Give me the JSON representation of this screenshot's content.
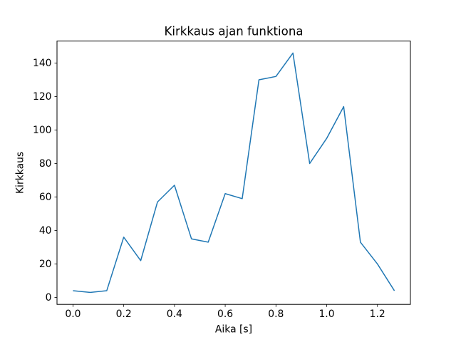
{
  "chart_data": {
    "type": "line",
    "title": "Kirkkaus ajan funktiona",
    "xlabel": "Aika [s]",
    "ylabel": "Kirkkaus",
    "x": [
      0.0,
      0.067,
      0.133,
      0.2,
      0.267,
      0.333,
      0.4,
      0.467,
      0.533,
      0.6,
      0.667,
      0.733,
      0.8,
      0.867,
      0.933,
      1.0,
      1.067,
      1.133,
      1.2,
      1.267
    ],
    "y": [
      4,
      3,
      4,
      36,
      22,
      57,
      67,
      35,
      33,
      62,
      59,
      130,
      132,
      146,
      80,
      95,
      114,
      33,
      20,
      4
    ],
    "xlim": [
      -0.063,
      1.33
    ],
    "ylim": [
      -4.15,
      153.15
    ],
    "xtick_values": [
      0.0,
      0.2,
      0.4,
      0.6,
      0.8,
      1.0,
      1.2
    ],
    "xtick_labels": [
      "0.0",
      "0.2",
      "0.4",
      "0.6",
      "0.8",
      "1.0",
      "1.2"
    ],
    "ytick_values": [
      0,
      20,
      40,
      60,
      80,
      100,
      120,
      140
    ],
    "ytick_labels": [
      "0",
      "20",
      "40",
      "60",
      "80",
      "100",
      "120",
      "140"
    ],
    "line_color": "#1f77b4",
    "axis_color": "#000000",
    "background_color": "#ffffff",
    "grid": false,
    "legend": "none"
  }
}
